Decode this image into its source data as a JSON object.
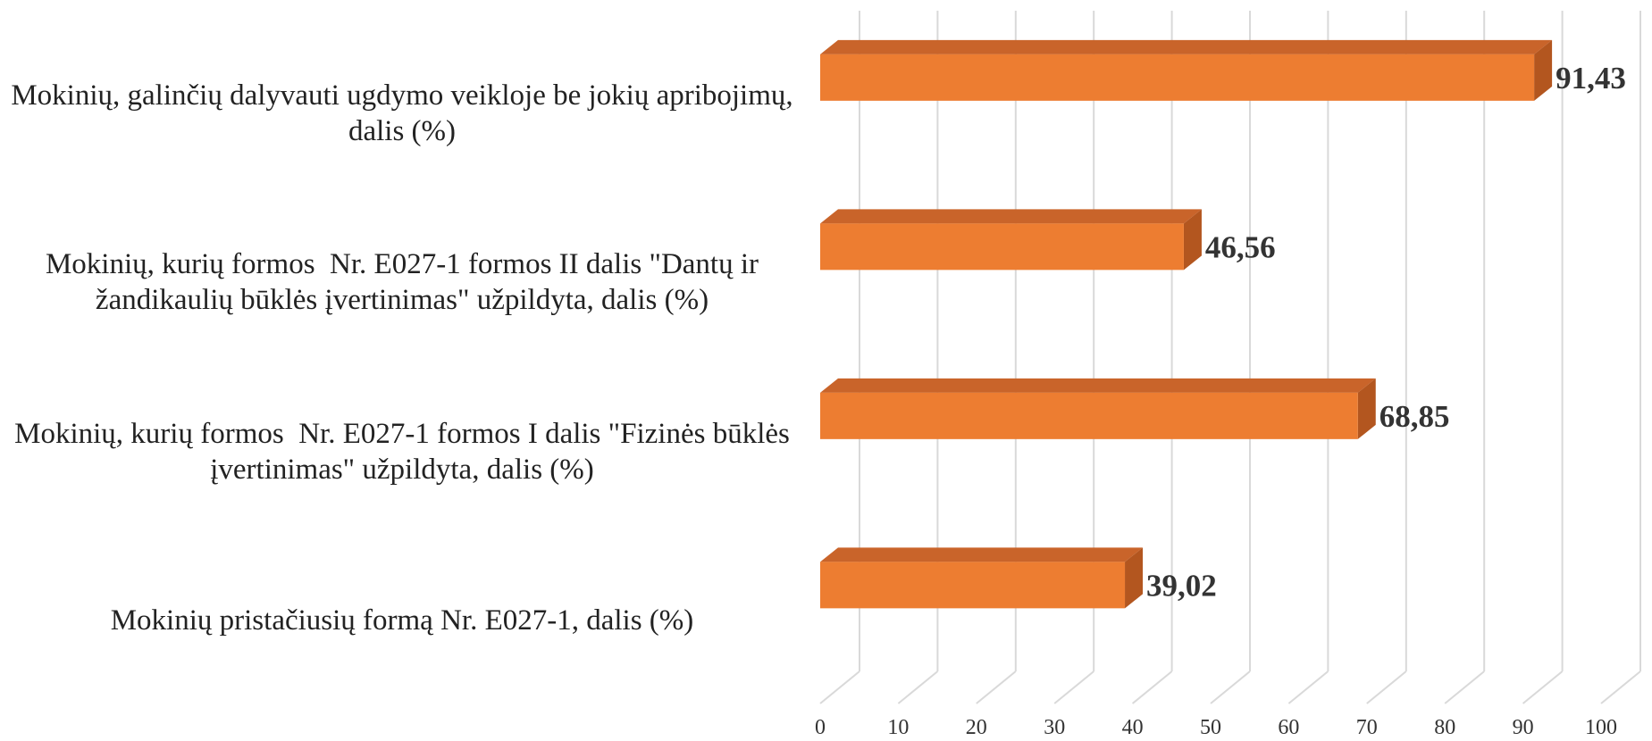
{
  "chart_data": {
    "type": "bar3d_horizontal",
    "categories": [
      "Mokinių, galinčių dalyvauti ugdymo veikloje be jokių apribojimų, dalis (%)",
      "Mokinių, kurių formos  Nr. E027-1 formos II dalis \"Dantų ir žandikaulių būklės įvertinimas\" užpildyta, dalis (%)",
      "Mokinių, kurių formos  Nr. E027-1 formos I dalis \"Fizinės būklės įvertinimas\" užpildyta, dalis (%)",
      "Mokinių pristačiusių formą Nr. E027-1, dalis (%)"
    ],
    "values": [
      91.43,
      46.56,
      68.85,
      39.02
    ],
    "value_labels": [
      "91,43",
      "46,56",
      "68,85",
      "39,02"
    ],
    "color": "#ed7d31",
    "xlim": [
      0,
      100
    ],
    "xticks": [
      0,
      10,
      20,
      30,
      40,
      50,
      60,
      70,
      80,
      90,
      100
    ],
    "grid": true
  }
}
